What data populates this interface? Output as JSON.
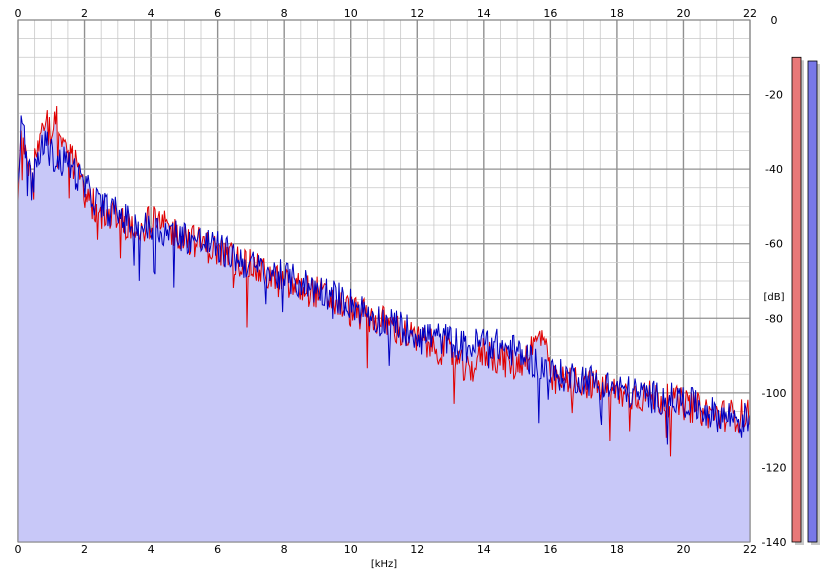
{
  "chart_data": {
    "type": "area",
    "title": "",
    "xlabel": "[kHz]",
    "ylabel": "[dB]",
    "xlim": [
      0,
      22
    ],
    "ylim": [
      -140,
      0
    ],
    "x_ticks": [
      "0",
      "2",
      "4",
      "6",
      "8",
      "10",
      "12",
      "14",
      "16",
      "18",
      "20",
      "22"
    ],
    "y_ticks": [
      "0",
      "-20",
      "-40",
      "-60",
      "-80",
      "-100",
      "-120",
      "-140"
    ],
    "grid": true,
    "colors": {
      "left_channel": "#e00000",
      "right_channel": "#0000c0",
      "fill": "#c8c8f8",
      "grid": "#c8c8c8",
      "grid_major": "#909090",
      "meter_left": "#e87878",
      "meter_right": "#7878e8"
    },
    "series": [
      {
        "channel": "left",
        "color": "#e00000",
        "x": [
          0,
          0.1,
          0.25,
          0.4,
          0.55,
          0.7,
          0.85,
          1.0,
          1.2,
          1.5,
          1.8,
          2.0,
          2.5,
          3.0,
          3.5,
          4.0,
          5.0,
          6.0,
          7.0,
          8.0,
          9.0,
          10.0,
          11.0,
          12.0,
          13.0,
          13.5,
          14.0,
          15.0,
          15.8,
          16.0,
          17.0,
          18.0,
          19.0,
          20.0,
          21.0,
          22.0
        ],
        "y": [
          -44,
          -33,
          -36,
          -44,
          -36,
          -30,
          -25,
          -30,
          -26,
          -36,
          -40,
          -47,
          -52,
          -53,
          -57,
          -54,
          -58,
          -62,
          -66,
          -71,
          -73,
          -78,
          -81,
          -86,
          -89,
          -95,
          -89,
          -93,
          -84,
          -97,
          -97,
          -100,
          -101,
          -103,
          -106,
          -106
        ]
      },
      {
        "channel": "right",
        "color": "#0000c0",
        "x": [
          0,
          0.1,
          0.25,
          0.4,
          0.55,
          0.7,
          0.85,
          1.0,
          1.2,
          1.5,
          1.8,
          2.0,
          2.5,
          3.0,
          3.5,
          4.0,
          5.0,
          6.0,
          7.0,
          8.0,
          9.0,
          10.0,
          11.0,
          12.0,
          13.0,
          13.5,
          14.0,
          15.0,
          15.8,
          16.0,
          17.0,
          18.0,
          19.0,
          20.0,
          21.0,
          22.0
        ],
        "y": [
          -42,
          -28,
          -34,
          -45,
          -40,
          -34,
          -33,
          -36,
          -38,
          -38,
          -42,
          -45,
          -50,
          -52,
          -55,
          -56,
          -58,
          -61,
          -66,
          -69,
          -72,
          -76,
          -81,
          -84,
          -86,
          -88,
          -86,
          -89,
          -93,
          -95,
          -96,
          -99,
          -101,
          -102,
          -106,
          -107
        ]
      }
    ],
    "level_meters": [
      {
        "channel": "left",
        "color": "#e87878",
        "value_db": -10
      },
      {
        "channel": "right",
        "color": "#7878e8",
        "value_db": -11
      }
    ]
  }
}
